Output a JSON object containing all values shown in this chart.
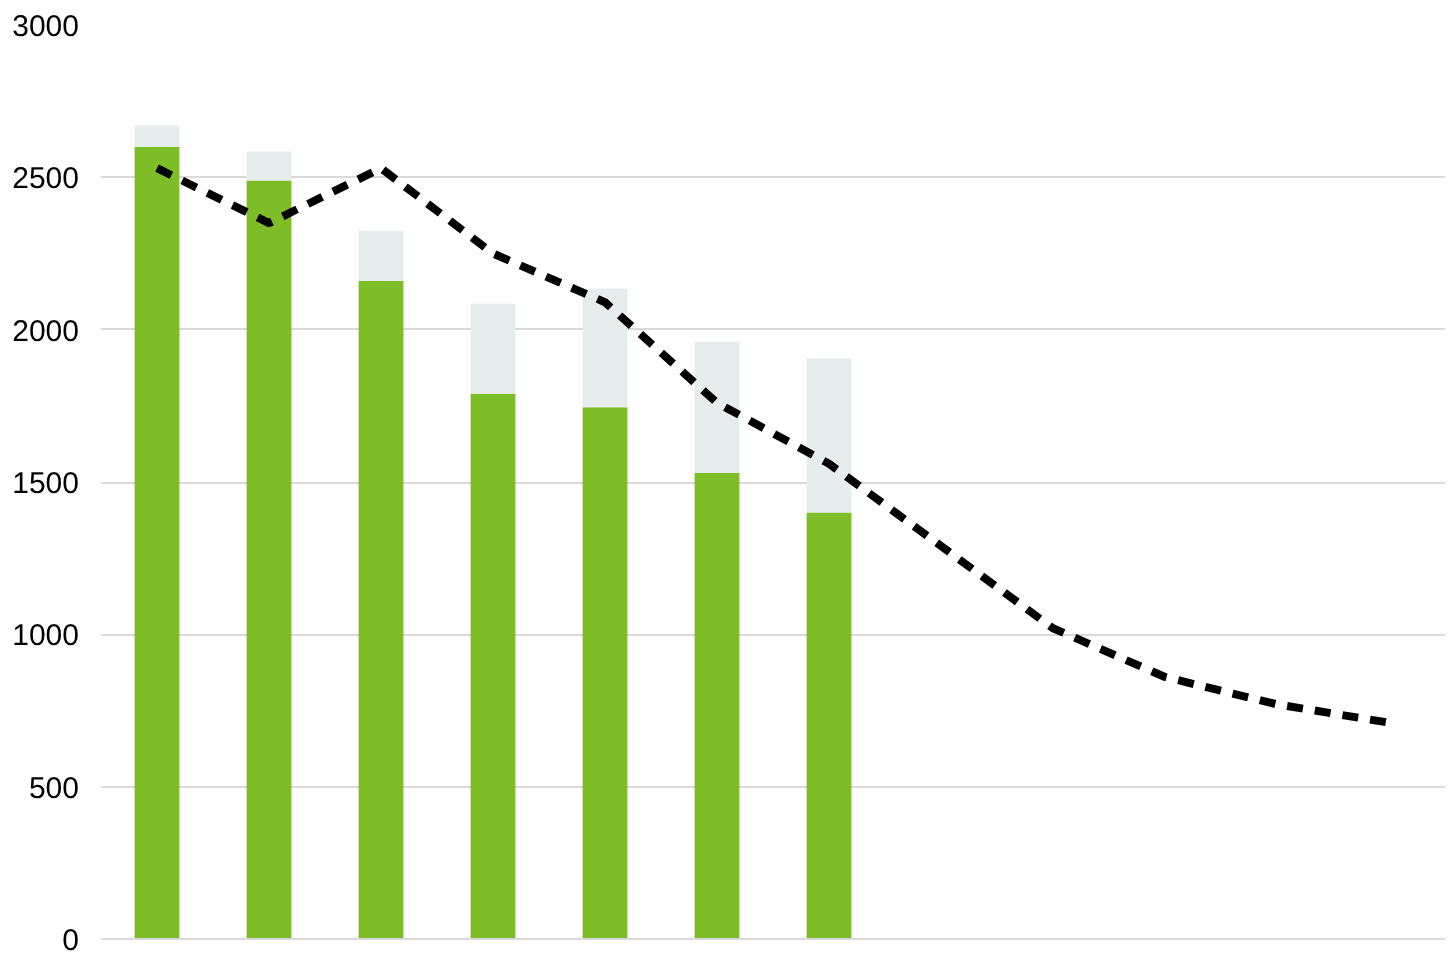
{
  "chart_data": {
    "type": "bar",
    "stacked": true,
    "categories": [
      null,
      null,
      null,
      null,
      null,
      null,
      null,
      null,
      null,
      null,
      null,
      null
    ],
    "series": [
      {
        "color": "#7dbd27",
        "values": [
          2600,
          2490,
          2160,
          1790,
          1745,
          1530,
          1400,
          null,
          null,
          null,
          null,
          null
        ]
      },
      {
        "color": "#e7ecec",
        "values": [
          70,
          95,
          165,
          295,
          390,
          430,
          505,
          null,
          null,
          null,
          null,
          null
        ]
      },
      {
        "type": "line",
        "color": "#000000",
        "line_style": "dashed",
        "values": [
          2530,
          2350,
          2530,
          2250,
          2090,
          1760,
          1560,
          1290,
          1020,
          860,
          770,
          710
        ]
      }
    ],
    "ylim": [
      0,
      3000
    ],
    "yticks": [
      0,
      500,
      1000,
      1500,
      2000,
      2500,
      3000
    ],
    "grid": "y",
    "tick_labels": "y"
  }
}
